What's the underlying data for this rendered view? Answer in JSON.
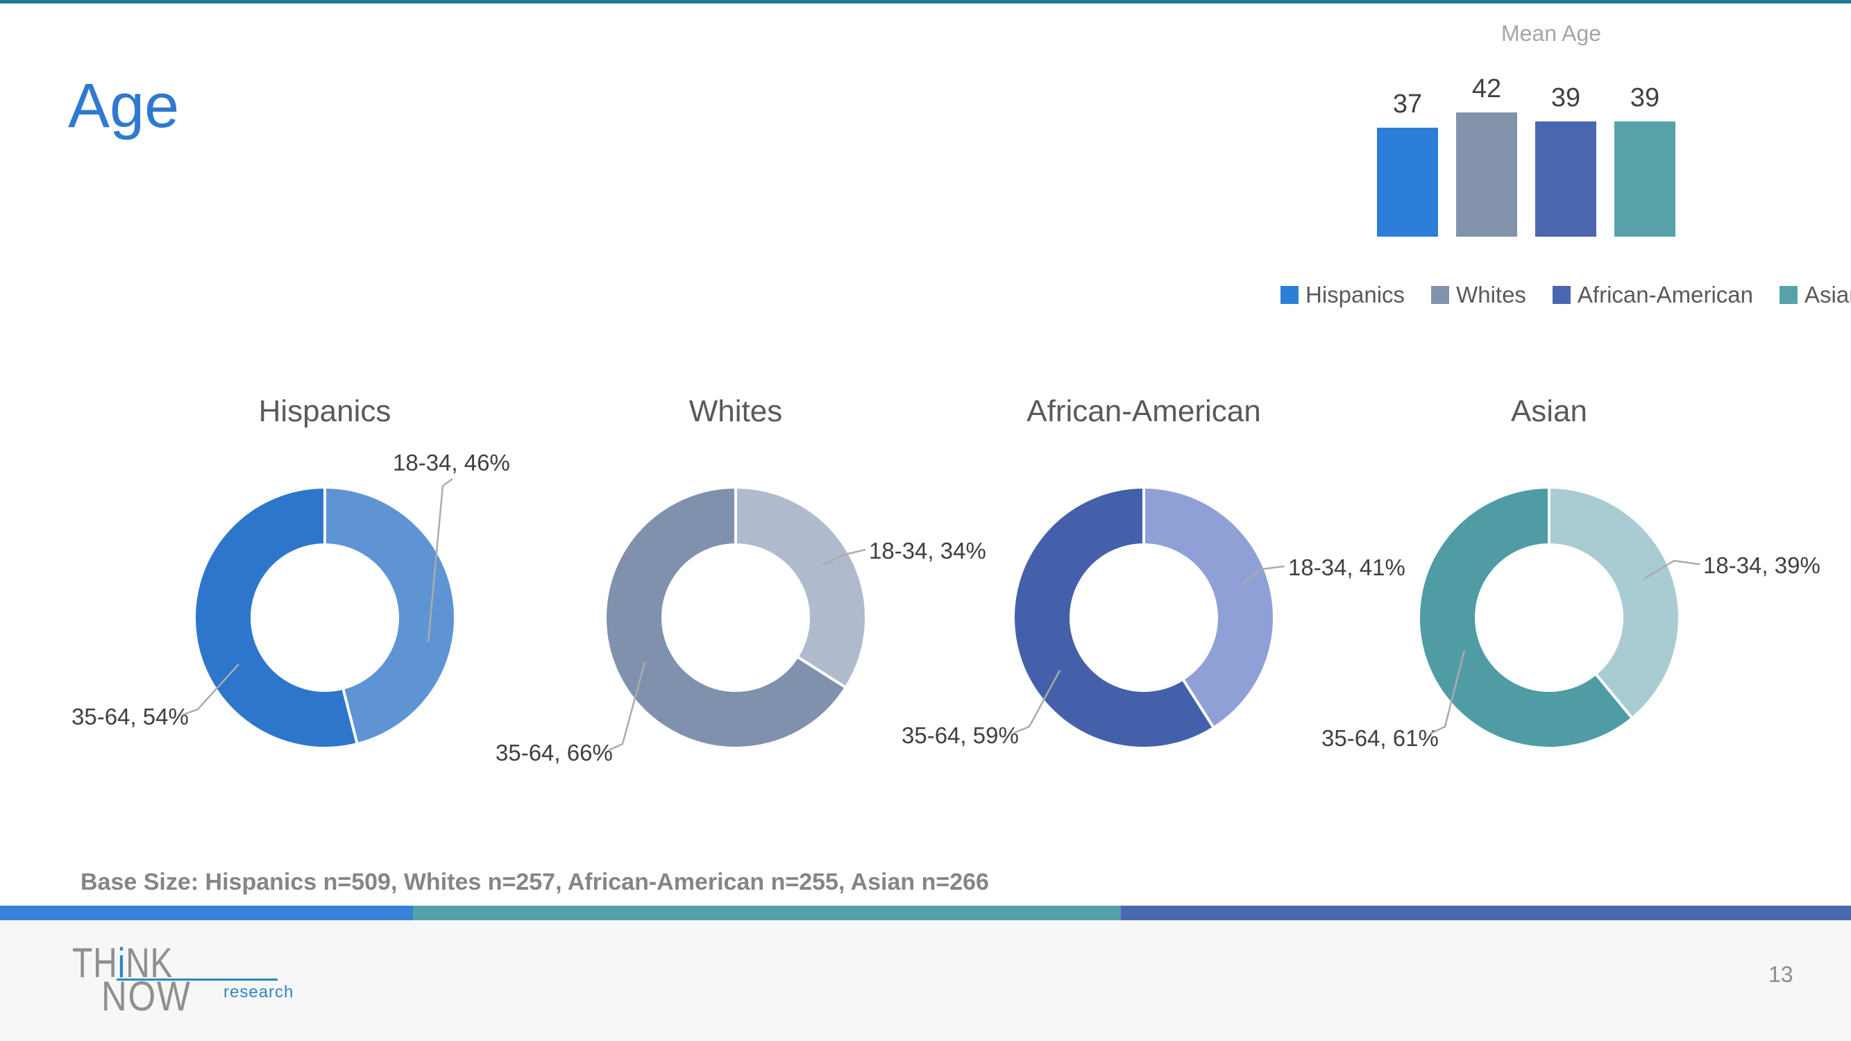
{
  "slide": {
    "title": "Age",
    "base_size_note": "Base Size: Hispanics n=509, Whites n=257, African-American n=255, Asian n=266",
    "page_number": "13"
  },
  "colors": {
    "top_line": "#1E7893",
    "title_blue": "#2E79D2",
    "muted_title": "#A6A6A6",
    "value_text": "#404040",
    "gray_text": "#595959",
    "leader_line": "#ABABAB",
    "base_size_text": "#858585",
    "footer_bg": "#F7F7F8",
    "page_number_text": "#8C8C8C",
    "logo_gray": "#8F8F8F",
    "logo_blue": "#2E86BE",
    "bottom_segments": [
      "#3781DA",
      "#57A1A9",
      "#4A67B0"
    ]
  },
  "chart_data": [
    {
      "type": "bar",
      "title": "Mean Age",
      "categories": [
        "Hispanics",
        "Whites",
        "African-American",
        "Asian"
      ],
      "values": [
        37,
        42,
        39,
        39
      ],
      "series_colors": [
        "#2B7FD9",
        "#8293AB",
        "#4966AE",
        "#57A2A9"
      ],
      "legend_position": "bottom",
      "axes": "hidden",
      "data_labels_shown": true
    },
    {
      "type": "donut",
      "title": "Hispanics",
      "categories": [
        "18-34",
        "35-64"
      ],
      "values": [
        46,
        54
      ],
      "colors": [
        "#5E94D4",
        "#2E76CC"
      ],
      "display_labels": [
        "18-34, 46%",
        "35-64, 54%"
      ]
    },
    {
      "type": "donut",
      "title": "Whites",
      "categories": [
        "18-34",
        "35-64"
      ],
      "values": [
        34,
        66
      ],
      "colors": [
        "#AFBACC",
        "#8091AD"
      ],
      "display_labels": [
        "18-34, 34%",
        "35-64, 66%"
      ]
    },
    {
      "type": "donut",
      "title": "African-American",
      "categories": [
        "18-34",
        "35-64"
      ],
      "values": [
        41,
        59
      ],
      "colors": [
        "#8FA0D6",
        "#4560AB"
      ],
      "display_labels": [
        "18-34, 41%",
        "35-64, 59%"
      ]
    },
    {
      "type": "donut",
      "title": "Asian",
      "categories": [
        "18-34",
        "35-64"
      ],
      "values": [
        39,
        61
      ],
      "colors": [
        "#A9CCD3",
        "#4F9CA5"
      ],
      "display_labels": [
        "18-34, 39%",
        "35-64, 61%"
      ]
    }
  ],
  "logo": {
    "line1_pre": "TH",
    "line1_i": "i",
    "line1_post": "NK",
    "line2": "NOW",
    "sub": "research"
  }
}
